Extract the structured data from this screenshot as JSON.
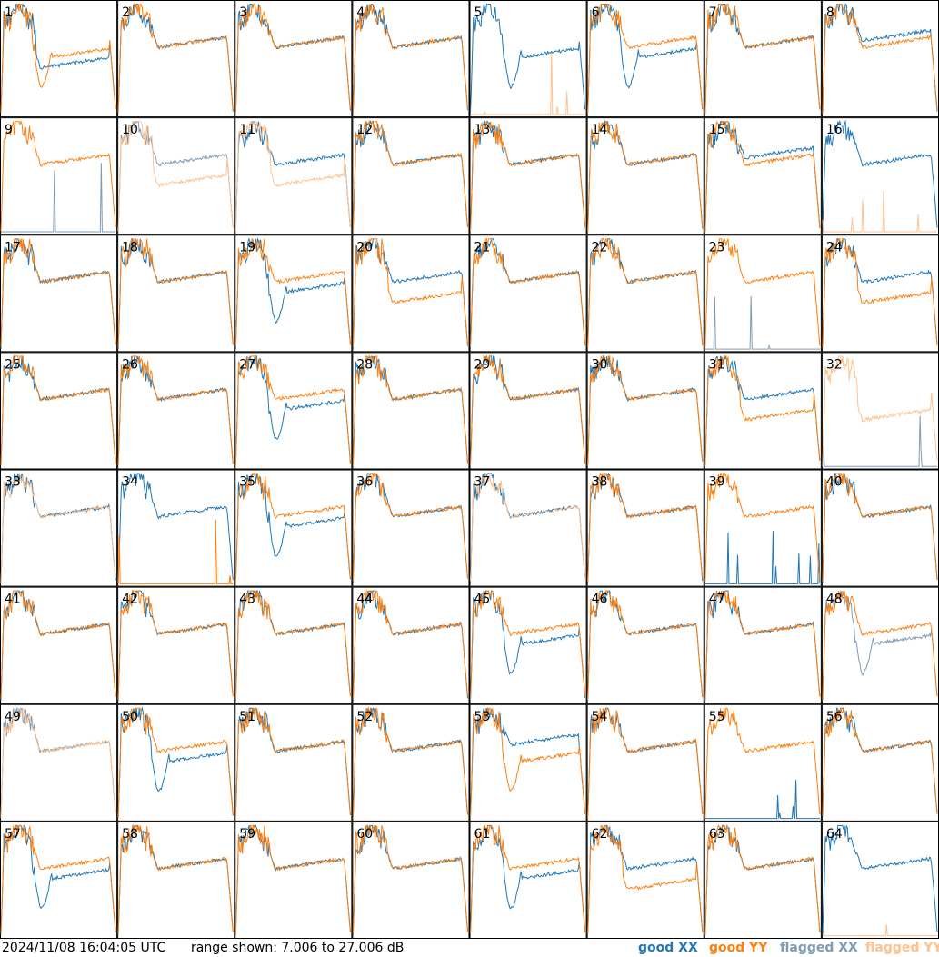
{
  "chart_data": {
    "type": "line",
    "timestamp": "2024/11/08 16:04:05 UTC",
    "range_text": "range shown: 7.006 to 27.006 dB",
    "ylim": [
      7.006,
      27.006
    ],
    "grid": {
      "rows": 8,
      "cols": 8
    },
    "legend": [
      {
        "label": "good XX",
        "color": "#1f77b4"
      },
      {
        "label": "good YY",
        "color": "#ff7f0e"
      },
      {
        "label": "flagged XX",
        "color": "#7f9bb3"
      },
      {
        "label": "flagged YY",
        "color": "#ffc18f"
      }
    ],
    "colors": {
      "good_xx": "#1f77b4",
      "good_yy": "#ff7f0e",
      "flagged_xx": "#7f9bb3",
      "flagged_yy": "#ffc18f"
    },
    "panels": [
      {
        "id": "1",
        "xx": "good",
        "yy": "good",
        "xx_shape": "low",
        "yy_shape": "dip"
      },
      {
        "id": "2",
        "xx": "good",
        "yy": "good",
        "xx_shape": "normal",
        "yy_shape": "normal"
      },
      {
        "id": "3",
        "xx": "good",
        "yy": "good",
        "xx_shape": "normal",
        "yy_shape": "normal"
      },
      {
        "id": "4",
        "xx": "good",
        "yy": "good",
        "xx_shape": "normal",
        "yy_shape": "normal"
      },
      {
        "id": "5",
        "xx": "good",
        "yy": "flagged",
        "xx_shape": "dip",
        "yy_shape": "dead"
      },
      {
        "id": "6",
        "xx": "good",
        "yy": "good",
        "xx_shape": "dip",
        "yy_shape": "normal"
      },
      {
        "id": "7",
        "xx": "good",
        "yy": "good",
        "xx_shape": "normal",
        "yy_shape": "normal"
      },
      {
        "id": "8",
        "xx": "good",
        "yy": "good",
        "xx_shape": "high",
        "yy_shape": "normal"
      },
      {
        "id": "9",
        "xx": "flagged",
        "yy": "good",
        "xx_shape": "dead",
        "yy_shape": "normal"
      },
      {
        "id": "10",
        "xx": "flagged",
        "yy": "flagged",
        "xx_shape": "normal",
        "yy_shape": "low"
      },
      {
        "id": "11",
        "xx": "good",
        "yy": "flagged",
        "xx_shape": "normal",
        "yy_shape": "low"
      },
      {
        "id": "12",
        "xx": "good",
        "yy": "good",
        "xx_shape": "normal",
        "yy_shape": "normal"
      },
      {
        "id": "13",
        "xx": "good",
        "yy": "good",
        "xx_shape": "normal",
        "yy_shape": "normal"
      },
      {
        "id": "14",
        "xx": "good",
        "yy": "good",
        "xx_shape": "normal",
        "yy_shape": "normal"
      },
      {
        "id": "15",
        "xx": "good",
        "yy": "good",
        "xx_shape": "high",
        "yy_shape": "normal"
      },
      {
        "id": "16",
        "xx": "good",
        "yy": "flagged",
        "xx_shape": "normal",
        "yy_shape": "dead"
      },
      {
        "id": "17",
        "xx": "good",
        "yy": "good",
        "xx_shape": "normal",
        "yy_shape": "normal"
      },
      {
        "id": "18",
        "xx": "good",
        "yy": "good",
        "xx_shape": "normal",
        "yy_shape": "normal"
      },
      {
        "id": "19",
        "xx": "good",
        "yy": "good",
        "xx_shape": "dip",
        "yy_shape": "normal"
      },
      {
        "id": "20",
        "xx": "good",
        "yy": "good",
        "xx_shape": "normal",
        "yy_shape": "low"
      },
      {
        "id": "21",
        "xx": "good",
        "yy": "good",
        "xx_shape": "normal",
        "yy_shape": "normal"
      },
      {
        "id": "22",
        "xx": "good",
        "yy": "good",
        "xx_shape": "normal",
        "yy_shape": "normal"
      },
      {
        "id": "23",
        "xx": "flagged",
        "yy": "good",
        "xx_shape": "dead",
        "yy_shape": "normal"
      },
      {
        "id": "24",
        "xx": "good",
        "yy": "good",
        "xx_shape": "normal",
        "yy_shape": "low"
      },
      {
        "id": "25",
        "xx": "good",
        "yy": "good",
        "xx_shape": "normal",
        "yy_shape": "normal"
      },
      {
        "id": "26",
        "xx": "good",
        "yy": "good",
        "xx_shape": "normal",
        "yy_shape": "normal"
      },
      {
        "id": "27",
        "xx": "good",
        "yy": "good",
        "xx_shape": "dip",
        "yy_shape": "normal"
      },
      {
        "id": "28",
        "xx": "good",
        "yy": "good",
        "xx_shape": "normal",
        "yy_shape": "normal"
      },
      {
        "id": "29",
        "xx": "good",
        "yy": "good",
        "xx_shape": "normal",
        "yy_shape": "normal"
      },
      {
        "id": "30",
        "xx": "good",
        "yy": "good",
        "xx_shape": "normal",
        "yy_shape": "normal"
      },
      {
        "id": "31",
        "xx": "good",
        "yy": "good",
        "xx_shape": "normal",
        "yy_shape": "low"
      },
      {
        "id": "32",
        "xx": "flagged",
        "yy": "flagged",
        "xx_shape": "dead",
        "yy_shape": "low"
      },
      {
        "id": "33",
        "xx": "good",
        "yy": "flagged",
        "xx_shape": "normal",
        "yy_shape": "normal"
      },
      {
        "id": "34",
        "xx": "good",
        "yy": "good",
        "xx_shape": "normal",
        "yy_shape": "dead"
      },
      {
        "id": "35",
        "xx": "good",
        "yy": "good",
        "xx_shape": "dip",
        "yy_shape": "normal"
      },
      {
        "id": "36",
        "xx": "good",
        "yy": "good",
        "xx_shape": "normal",
        "yy_shape": "normal"
      },
      {
        "id": "37",
        "xx": "good",
        "yy": "flagged",
        "xx_shape": "normal",
        "yy_shape": "normal"
      },
      {
        "id": "38",
        "xx": "good",
        "yy": "good",
        "xx_shape": "normal",
        "yy_shape": "normal"
      },
      {
        "id": "39",
        "xx": "good",
        "yy": "good",
        "xx_shape": "dead",
        "yy_shape": "normal"
      },
      {
        "id": "40",
        "xx": "good",
        "yy": "good",
        "xx_shape": "normal",
        "yy_shape": "normal"
      },
      {
        "id": "41",
        "xx": "good",
        "yy": "good",
        "xx_shape": "normal",
        "yy_shape": "normal"
      },
      {
        "id": "42",
        "xx": "good",
        "yy": "good",
        "xx_shape": "normal",
        "yy_shape": "normal"
      },
      {
        "id": "43",
        "xx": "good",
        "yy": "good",
        "xx_shape": "normal",
        "yy_shape": "normal"
      },
      {
        "id": "44",
        "xx": "good",
        "yy": "good",
        "xx_shape": "normal",
        "yy_shape": "normal"
      },
      {
        "id": "45",
        "xx": "good",
        "yy": "good",
        "xx_shape": "dip",
        "yy_shape": "normal"
      },
      {
        "id": "46",
        "xx": "good",
        "yy": "good",
        "xx_shape": "normal",
        "yy_shape": "normal"
      },
      {
        "id": "47",
        "xx": "good",
        "yy": "good",
        "xx_shape": "normal",
        "yy_shape": "normal"
      },
      {
        "id": "48",
        "xx": "flagged",
        "yy": "good",
        "xx_shape": "dip",
        "yy_shape": "normal"
      },
      {
        "id": "49",
        "xx": "flagged",
        "yy": "flagged",
        "xx_shape": "normal",
        "yy_shape": "normal"
      },
      {
        "id": "50",
        "xx": "good",
        "yy": "good",
        "xx_shape": "dip",
        "yy_shape": "normal"
      },
      {
        "id": "51",
        "xx": "good",
        "yy": "good",
        "xx_shape": "normal",
        "yy_shape": "normal"
      },
      {
        "id": "52",
        "xx": "good",
        "yy": "good",
        "xx_shape": "normal",
        "yy_shape": "normal"
      },
      {
        "id": "53",
        "xx": "good",
        "yy": "good",
        "xx_shape": "high",
        "yy_shape": "dip"
      },
      {
        "id": "54",
        "xx": "good",
        "yy": "good",
        "xx_shape": "normal",
        "yy_shape": "normal"
      },
      {
        "id": "55",
        "xx": "good",
        "yy": "good",
        "xx_shape": "dead",
        "yy_shape": "normal"
      },
      {
        "id": "56",
        "xx": "good",
        "yy": "good",
        "xx_shape": "normal",
        "yy_shape": "normal"
      },
      {
        "id": "57",
        "xx": "good",
        "yy": "good",
        "xx_shape": "dip",
        "yy_shape": "normal"
      },
      {
        "id": "58",
        "xx": "good",
        "yy": "good",
        "xx_shape": "normal",
        "yy_shape": "normal"
      },
      {
        "id": "59",
        "xx": "good",
        "yy": "good",
        "xx_shape": "normal",
        "yy_shape": "normal"
      },
      {
        "id": "60",
        "xx": "good",
        "yy": "good",
        "xx_shape": "normal",
        "yy_shape": "normal"
      },
      {
        "id": "61",
        "xx": "good",
        "yy": "good",
        "xx_shape": "dip",
        "yy_shape": "normal"
      },
      {
        "id": "62",
        "xx": "good",
        "yy": "good",
        "xx_shape": "normal",
        "yy_shape": "low"
      },
      {
        "id": "63",
        "xx": "good",
        "yy": "good",
        "xx_shape": "normal",
        "yy_shape": "normal"
      },
      {
        "id": "64",
        "xx": "good",
        "yy": "flagged",
        "xx_shape": "normal",
        "yy_shape": "dead"
      }
    ]
  }
}
